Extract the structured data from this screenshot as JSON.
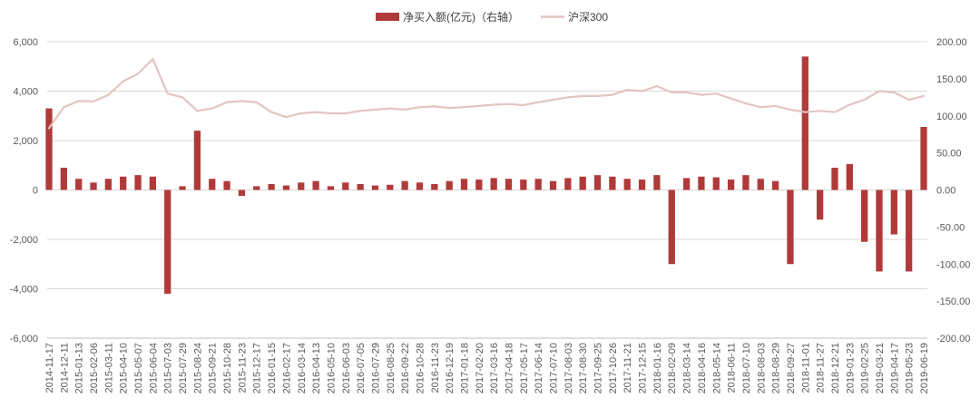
{
  "chart_data": {
    "type": "bar+line",
    "title": "",
    "legend": {
      "placement": "top-center",
      "entries": [
        {
          "name": "净买入额(亿元)（右轴）",
          "marker": "bar",
          "color": "#b03a3a"
        },
        {
          "name": "沪深300",
          "marker": "line",
          "color": "#e3c4c1"
        }
      ]
    },
    "y_left": {
      "range": [
        -6000,
        6000
      ],
      "ticks": [
        6000,
        4000,
        2000,
        0,
        -2000,
        -4000,
        -6000
      ],
      "tick_labels": [
        "6,000",
        "4,000",
        "2,000",
        "0",
        "-2,000",
        "-4,000",
        "-6,000"
      ]
    },
    "y_right": {
      "range": [
        -200,
        200
      ],
      "ticks": [
        200,
        150,
        100,
        50,
        0,
        -50,
        -100,
        -150,
        -200
      ],
      "tick_labels": [
        "200.00",
        "150.00",
        "100.00",
        "50.00",
        "0.00",
        "-50.00",
        "-100.00",
        "-150.00",
        "-200.00"
      ]
    },
    "grid": true,
    "x_dates": [
      "2014-11-17",
      "2014-12-11",
      "2015-01-13",
      "2015-02-06",
      "2015-03-11",
      "2015-04-10",
      "2015-05-07",
      "2015-06-04",
      "2015-07-03",
      "2015-07-29",
      "2015-08-24",
      "2015-09-21",
      "2015-10-28",
      "2015-11-23",
      "2015-12-17",
      "2016-01-15",
      "2016-02-17",
      "2016-03-14",
      "2016-04-13",
      "2016-05-10",
      "2016-06-03",
      "2016-07-05",
      "2016-07-29",
      "2016-08-25",
      "2016-09-22",
      "2016-10-28",
      "2016-11-23",
      "2016-12-19",
      "2017-01-18",
      "2017-02-20",
      "2017-03-16",
      "2017-04-18",
      "2017-05-17",
      "2017-06-14",
      "2017-07-10",
      "2017-08-03",
      "2017-08-30",
      "2017-09-25",
      "2017-10-26",
      "2017-11-21",
      "2017-12-15",
      "2018-01-16",
      "2018-02-09",
      "2018-03-14",
      "2018-04-16",
      "2018-05-14",
      "2018-06-11",
      "2018-07-10",
      "2018-08-03",
      "2018-08-29",
      "2018-09-27",
      "2018-11-01",
      "2018-11-27",
      "2018-12-21",
      "2019-01-23",
      "2019-02-25",
      "2019-03-21",
      "2019-04-17",
      "2019-05-23",
      "2019-06-19"
    ],
    "series": [
      {
        "name": "沪深300",
        "axis": "left",
        "kind": "line",
        "values": [
          2500,
          3350,
          3600,
          3580,
          3850,
          4400,
          4700,
          5300,
          3900,
          3750,
          3200,
          3300,
          3550,
          3600,
          3550,
          3150,
          2950,
          3100,
          3150,
          3100,
          3100,
          3200,
          3250,
          3300,
          3250,
          3350,
          3380,
          3320,
          3350,
          3400,
          3450,
          3480,
          3430,
          3550,
          3650,
          3750,
          3800,
          3800,
          3850,
          4050,
          4000,
          4200,
          3950,
          3950,
          3850,
          3900,
          3700,
          3500,
          3350,
          3400,
          3250,
          3150,
          3200,
          3150,
          3450,
          3650,
          4000,
          3950,
          3650,
          3800
        ]
      },
      {
        "name": "净买入额(亿元)（右轴）",
        "axis": "right",
        "kind": "bar",
        "values": [
          110,
          30,
          15,
          10,
          15,
          18,
          20,
          18,
          -140,
          5,
          80,
          15,
          12,
          -8,
          5,
          8,
          6,
          10,
          12,
          5,
          10,
          8,
          6,
          7,
          12,
          10,
          8,
          12,
          15,
          14,
          16,
          15,
          14,
          15,
          12,
          16,
          18,
          20,
          18,
          15,
          14,
          20,
          -100,
          16,
          18,
          17,
          14,
          20,
          15,
          12,
          -100,
          180,
          -40,
          30,
          35,
          -70,
          -110,
          -60,
          -110,
          85
        ]
      }
    ]
  }
}
